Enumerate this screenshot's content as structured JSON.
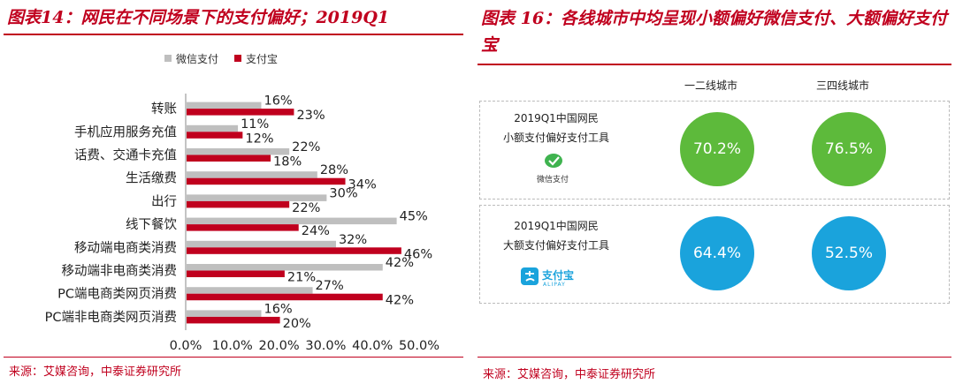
{
  "left": {
    "title": "图表14：网民在不同场景下的支付偏好；2019Q1",
    "source": "来源：艾媒咨询，中泰证券研究所"
  },
  "right": {
    "title": "图表 16：各线城市中均呈现小额偏好微信支付、大额偏好支付宝",
    "source": "来源：艾媒咨询，中泰证券研究所",
    "columns": [
      "一二线城市",
      "三四线城市"
    ],
    "rows": [
      {
        "period": "2019Q1中国网民",
        "label": "小额支付偏好支付工具",
        "logo": "wechat-pay-icon",
        "logo_text": "微信支付",
        "values": [
          "70.2%",
          "76.5%"
        ],
        "color": "#5dba3b"
      },
      {
        "period": "2019Q1中国网民",
        "label": "大额支付偏好支付工具",
        "logo": "alipay-icon",
        "logo_text": "支付宝",
        "logo_sub": "ALIPAY",
        "values": [
          "64.4%",
          "52.5%"
        ],
        "color": "#1aa3dc"
      }
    ]
  },
  "chart_data": {
    "type": "bar",
    "orientation": "horizontal",
    "categories": [
      "转账",
      "手机应用服务充值",
      "话费、交通卡充值",
      "生活缴费",
      "出行",
      "线下餐饮",
      "移动端电商类消费",
      "移动端非电商类消费",
      "PC端电商类网页消费",
      "PC端非电商类网页消费"
    ],
    "series": [
      {
        "name": "微信支付",
        "color": "#bfbfbf",
        "values": [
          16,
          11,
          22,
          28,
          30,
          45,
          32,
          42,
          27,
          16
        ],
        "labels": [
          "16%",
          "11%",
          "22%",
          "28%",
          "30%",
          "45%",
          "32%",
          "42%",
          "27%",
          "16%"
        ]
      },
      {
        "name": "支付宝",
        "color": "#c0001e",
        "values": [
          23,
          12,
          18,
          34,
          22,
          24,
          46,
          21,
          42,
          20
        ],
        "labels": [
          "23%",
          "12%",
          "18%",
          "34%",
          "22%",
          "24%",
          "46%",
          "21%",
          "42%",
          "20%"
        ]
      }
    ],
    "xlim": [
      0,
      50
    ],
    "xticks": [
      "0.0%",
      "10.0%",
      "20.0%",
      "30.0%",
      "40.0%",
      "50.0%"
    ],
    "legend_position": "top"
  }
}
